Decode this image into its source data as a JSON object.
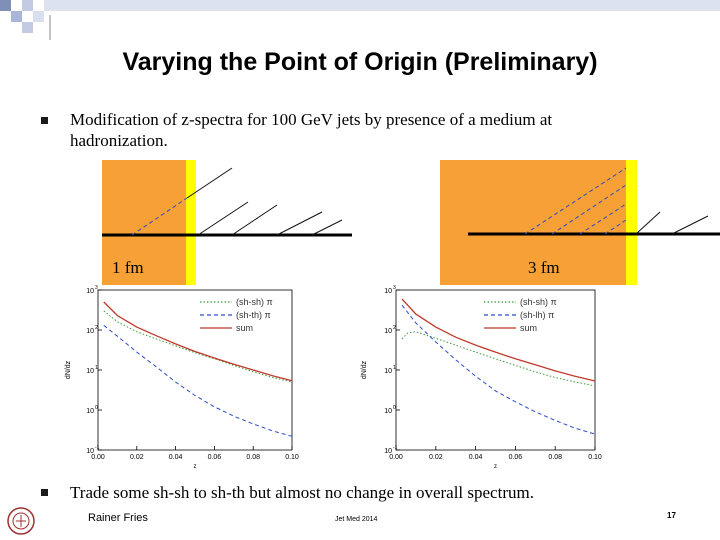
{
  "slide": {
    "title": "Varying the Point of Origin (Preliminary)",
    "bullet1": "Modification of z-spectra for 100 GeV jets by presence of a medium at hadronization.",
    "bullet2": "Trade some sh-sh to sh-th but almost no change in overall spectrum.",
    "footer_left": "Rainer Fries",
    "footer_center": "Jet Med 2014",
    "page_number": "17",
    "colors": {
      "medium": "#f7a035",
      "boundary": "#ffff00",
      "sum": "#c0392b",
      "sh_sh": "#3a9a3a",
      "sh_th": "#2a4cc8"
    }
  },
  "diagrams": [
    {
      "label": "1 fm"
    },
    {
      "label": "3 fm"
    }
  ],
  "chart_data": [
    {
      "type": "line",
      "xlabel": "z",
      "ylabel": "dN/dz",
      "x_ticks": [
        "0.00",
        "0.02",
        "0.04",
        "0.06",
        "0.08",
        "0.10"
      ],
      "y_ticks": [
        "10",
        "10",
        "10",
        "10",
        "10"
      ],
      "y_exponents": [
        "3",
        "2",
        "1",
        "0",
        "-1"
      ],
      "xlim": [
        0.0,
        0.1
      ],
      "ylim_log10": [
        -1,
        3
      ],
      "log_y": true,
      "legend_position": "top-right",
      "series": [
        {
          "name": "(sh-sh) π",
          "style": "dotted",
          "color": "#3a9a3a",
          "x": [
            0.003,
            0.01,
            0.02,
            0.03,
            0.04,
            0.05,
            0.06,
            0.07,
            0.08,
            0.09,
            0.1
          ],
          "y": [
            300,
            160,
            90,
            60,
            40,
            27,
            19,
            13,
            9,
            6.5,
            5
          ]
        },
        {
          "name": "(sh-th) π",
          "style": "dashed",
          "color": "#2a4cc8",
          "x": [
            0.003,
            0.01,
            0.02,
            0.03,
            0.04,
            0.05,
            0.06,
            0.07,
            0.08,
            0.09,
            0.1
          ],
          "y": [
            130,
            70,
            28,
            12,
            5,
            2.3,
            1.2,
            0.7,
            0.45,
            0.3,
            0.22
          ]
        },
        {
          "name": "sum",
          "style": "solid",
          "color": "#c0392b",
          "x": [
            0.003,
            0.01,
            0.02,
            0.03,
            0.04,
            0.05,
            0.06,
            0.07,
            0.08,
            0.09,
            0.1
          ],
          "y": [
            500,
            230,
            118,
            72,
            45,
            29,
            20,
            14,
            10,
            7.2,
            5.4
          ]
        }
      ]
    },
    {
      "type": "line",
      "xlabel": "z",
      "ylabel": "dN/dz",
      "x_ticks": [
        "0.00",
        "0.02",
        "0.04",
        "0.06",
        "0.08",
        "0.10"
      ],
      "y_ticks": [
        "10",
        "10",
        "10",
        "10",
        "10"
      ],
      "y_exponents": [
        "3",
        "2",
        "1",
        "0",
        "-1"
      ],
      "xlim": [
        0.0,
        0.1
      ],
      "ylim_log10": [
        -1,
        3
      ],
      "log_y": true,
      "legend_position": "top-right",
      "series": [
        {
          "name": "(sh-sh) π",
          "style": "dotted",
          "color": "#3a9a3a",
          "x": [
            0.003,
            0.006,
            0.01,
            0.02,
            0.03,
            0.04,
            0.05,
            0.06,
            0.07,
            0.08,
            0.09,
            0.1
          ],
          "y": [
            60,
            85,
            90,
            62,
            42,
            28,
            19,
            13,
            9,
            6.5,
            5,
            4
          ]
        },
        {
          "name": "(sh-lh) π",
          "style": "dashed",
          "color": "#2a4cc8",
          "x": [
            0.003,
            0.01,
            0.02,
            0.03,
            0.04,
            0.05,
            0.06,
            0.07,
            0.08,
            0.09,
            0.1
          ],
          "y": [
            420,
            150,
            50,
            18,
            7,
            3,
            1.6,
            0.9,
            0.55,
            0.35,
            0.25
          ]
        },
        {
          "name": "sum",
          "style": "solid",
          "color": "#c0392b",
          "x": [
            0.003,
            0.01,
            0.02,
            0.03,
            0.04,
            0.05,
            0.06,
            0.07,
            0.08,
            0.09,
            0.1
          ],
          "y": [
            600,
            250,
            118,
            66,
            42,
            28,
            19,
            13.5,
            9.5,
            7,
            5.3
          ]
        }
      ]
    }
  ]
}
